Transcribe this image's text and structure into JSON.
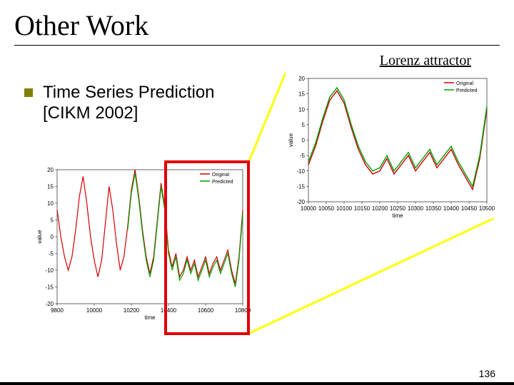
{
  "title": "Other Work",
  "lorenz_label": "Lorenz attractor",
  "bullet": {
    "line1": "Time Series Prediction",
    "line2": "[CIKM 2002]"
  },
  "page_number": "136",
  "left_chart": {
    "type": "line",
    "xlim": [
      9800,
      10800
    ],
    "ylim": [
      -20,
      20
    ],
    "xticks": [
      9800,
      10000,
      10200,
      10400,
      10600,
      10800
    ],
    "yticks": [
      -20,
      -15,
      -10,
      -5,
      0,
      5,
      10,
      15,
      20
    ],
    "xlabel": "time",
    "ylabel": "value",
    "legend": [
      "Original",
      "Predicted"
    ],
    "legend_colors": [
      "#d00000",
      "#00a000"
    ],
    "axis_color": "#000000",
    "grid_color": "#d0d0d0",
    "background_color": "#ffffff",
    "label_fontsize": 8,
    "line_width": 1.2,
    "series": [
      {
        "color": "#d00000",
        "x": [
          9800,
          9820,
          9840,
          9860,
          9880,
          9900,
          9920,
          9940,
          9960,
          9980,
          10000,
          10020,
          10040,
          10060,
          10080,
          10100,
          10120,
          10140,
          10160,
          10180,
          10200,
          10220,
          10240,
          10260,
          10280,
          10300,
          10320,
          10340,
          10360,
          10380,
          10400,
          10420,
          10440,
          10460,
          10480,
          10500,
          10520,
          10540,
          10560,
          10580,
          10600,
          10620,
          10640,
          10660,
          10680,
          10700,
          10720,
          10740,
          10760,
          10780,
          10800
        ],
        "y": [
          8,
          0,
          -6,
          -10,
          -6,
          2,
          12,
          18,
          10,
          0,
          -7,
          -12,
          -7,
          4,
          15,
          8,
          -2,
          -10,
          -6,
          3,
          14,
          20,
          12,
          2,
          -6,
          -11,
          -6,
          5,
          16,
          9,
          -4,
          -9,
          -5,
          -12,
          -10,
          -6,
          -10,
          -7,
          -12,
          -9,
          -6,
          -11,
          -8,
          -6,
          -10,
          -7,
          -4,
          -10,
          -14,
          -6,
          8
        ]
      },
      {
        "color": "#00a000",
        "x": [
          10180,
          10200,
          10220,
          10240,
          10260,
          10280,
          10300,
          10320,
          10340,
          10360,
          10380,
          10400,
          10420,
          10440,
          10460,
          10480,
          10500,
          10520,
          10540,
          10560,
          10580,
          10600,
          10620,
          10640,
          10660,
          10680,
          10700,
          10720,
          10740,
          10760,
          10780,
          10800
        ],
        "y": [
          2,
          13,
          19,
          11,
          1,
          -7,
          -12,
          -7,
          4,
          15,
          8,
          -5,
          -10,
          -6,
          -13,
          -11,
          -7,
          -11,
          -8,
          -13,
          -10,
          -7,
          -12,
          -9,
          -7,
          -11,
          -8,
          -5,
          -11,
          -15,
          -7,
          7
        ]
      }
    ]
  },
  "right_chart": {
    "type": "line",
    "xlim": [
      10000,
      10500
    ],
    "ylim": [
      -20,
      20
    ],
    "xticks": [
      10000,
      10050,
      10100,
      10150,
      10200,
      10250,
      10300,
      10350,
      10400,
      10450,
      10500
    ],
    "yticks": [
      -20,
      -15,
      -10,
      -5,
      0,
      5,
      10,
      15,
      20
    ],
    "xlabel": "time",
    "ylabel": "value",
    "legend": [
      "Original",
      "Predicted"
    ],
    "legend_colors": [
      "#d00000",
      "#00a000"
    ],
    "axis_color": "#000000",
    "grid_color": "#d0d0d0",
    "background_color": "#ffffff",
    "label_fontsize": 8,
    "line_width": 1.4,
    "series": [
      {
        "color": "#d00000",
        "x": [
          10000,
          10020,
          10040,
          10060,
          10080,
          10100,
          10120,
          10140,
          10160,
          10180,
          10200,
          10220,
          10240,
          10260,
          10280,
          10300,
          10320,
          10340,
          10360,
          10380,
          10400,
          10420,
          10440,
          10460,
          10480,
          10500
        ],
        "y": [
          -8,
          -2,
          6,
          13,
          16,
          12,
          4,
          -3,
          -8,
          -11,
          -10,
          -6,
          -11,
          -8,
          -5,
          -10,
          -7,
          -4,
          -9,
          -6,
          -3,
          -8,
          -12,
          -16,
          -6,
          10
        ]
      },
      {
        "color": "#00a000",
        "x": [
          10000,
          10020,
          10040,
          10060,
          10080,
          10100,
          10120,
          10140,
          10160,
          10180,
          10200,
          10220,
          10240,
          10260,
          10280,
          10300,
          10320,
          10340,
          10360,
          10380,
          10400,
          10420,
          10440,
          10460,
          10480,
          10500
        ],
        "y": [
          -7,
          -1,
          7,
          14,
          17,
          13,
          5,
          -2,
          -7,
          -10,
          -9,
          -5,
          -10,
          -7,
          -4,
          -9,
          -6,
          -3,
          -8,
          -5,
          -2,
          -7,
          -11,
          -15,
          -5,
          11
        ]
      }
    ]
  },
  "red_box": {
    "border_color": "#e00000",
    "border_width": 4
  },
  "connector_lines": {
    "color": "#ffff00",
    "stroke_width": 3,
    "top": {
      "x1": 348,
      "y1": 228,
      "x2": 400,
      "y2": 102
    },
    "bottom": {
      "x1": 348,
      "y1": 468,
      "x2": 692,
      "y2": 306
    }
  },
  "black_shadow_bar": {
    "height": 4,
    "color": "#000000"
  }
}
